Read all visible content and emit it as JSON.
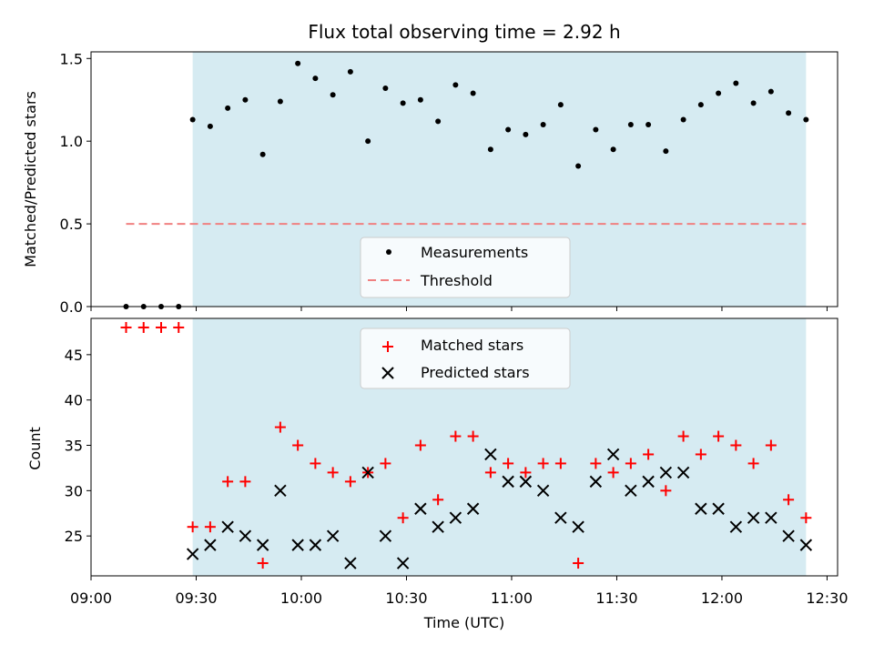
{
  "chart_data": [
    {
      "type": "scatter",
      "title": "Flux total observing time = 2.92 h",
      "ylabel": "Matched/Predicted stars",
      "ylim": [
        0,
        1.54
      ],
      "yticks": [
        0.0,
        0.5,
        1.0,
        1.5
      ],
      "ytick_labels": [
        "0.0",
        "0.5",
        "1.0",
        "1.5"
      ],
      "shaded_span_minutes": [
        569,
        744
      ],
      "threshold": {
        "name": "Threshold",
        "value": 0.5,
        "x_range_minutes": [
          550,
          744
        ],
        "color": "#f08080"
      },
      "legend": {
        "position": "lower-center",
        "entries": [
          "Measurements",
          "Threshold"
        ]
      },
      "series": [
        {
          "name": "Measurements",
          "color": "#000000",
          "x_minutes": [
            550,
            555,
            560,
            565,
            569,
            574,
            579,
            584,
            589,
            594,
            599,
            604,
            609,
            614,
            619,
            624,
            629,
            634,
            639,
            644,
            649,
            654,
            659,
            664,
            669,
            674,
            679,
            684,
            689,
            694,
            699,
            704,
            709,
            714,
            719,
            724,
            729,
            734,
            739,
            744
          ],
          "values": [
            0,
            0,
            0,
            0,
            1.13,
            1.09,
            1.2,
            1.25,
            0.92,
            1.24,
            1.47,
            1.38,
            1.28,
            1.42,
            1.0,
            1.32,
            1.23,
            1.25,
            1.12,
            1.34,
            1.29,
            0.95,
            1.07,
            1.04,
            1.1,
            1.22,
            0.85,
            1.07,
            0.95,
            1.1,
            1.1,
            0.94,
            1.13,
            1.22,
            1.29,
            1.35,
            1.23,
            1.3,
            1.17,
            1.13
          ]
        }
      ]
    },
    {
      "type": "scatter",
      "xlabel": "Time (UTC)",
      "ylabel": "Count",
      "xlim_minutes": [
        540,
        753
      ],
      "ylim": [
        20.6,
        49.0
      ],
      "yticks": [
        25,
        30,
        35,
        40,
        45
      ],
      "ytick_labels": [
        "25",
        "30",
        "35",
        "40",
        "45"
      ],
      "xticks_minutes": [
        540,
        570,
        600,
        630,
        660,
        690,
        720,
        750
      ],
      "xtick_labels": [
        "09:00",
        "09:30",
        "10:00",
        "10:30",
        "11:00",
        "11:30",
        "12:00",
        "12:30"
      ],
      "shaded_span_minutes": [
        569,
        744
      ],
      "legend": {
        "position": "top-center",
        "entries": [
          "Matched stars",
          "Predicted stars"
        ]
      },
      "series": [
        {
          "name": "Matched stars",
          "marker": "+",
          "color": "#ff0000",
          "x_minutes": [
            550,
            555,
            560,
            565,
            569,
            574,
            579,
            584,
            589,
            594,
            599,
            604,
            609,
            614,
            619,
            624,
            629,
            634,
            639,
            644,
            649,
            654,
            659,
            664,
            669,
            674,
            679,
            684,
            689,
            694,
            699,
            704,
            709,
            714,
            719,
            724,
            729,
            734,
            739,
            744
          ],
          "values": [
            48,
            48,
            48,
            48,
            26,
            26,
            31,
            31,
            22,
            37,
            35,
            33,
            32,
            31,
            32,
            33,
            27,
            35,
            29,
            36,
            36,
            32,
            33,
            32,
            33,
            33,
            22,
            33,
            32,
            33,
            34,
            30,
            36,
            34,
            36,
            35,
            33,
            35,
            29,
            27
          ]
        },
        {
          "name": "Predicted stars",
          "marker": "x",
          "color": "#000000",
          "x_minutes": [
            569,
            574,
            579,
            584,
            589,
            594,
            599,
            604,
            609,
            614,
            619,
            624,
            629,
            634,
            639,
            644,
            649,
            654,
            659,
            664,
            669,
            674,
            679,
            684,
            689,
            694,
            699,
            704,
            709,
            714,
            719,
            724,
            729,
            734,
            739,
            744
          ],
          "values": [
            23,
            24,
            26,
            25,
            24,
            30,
            24,
            24,
            25,
            22,
            32,
            25,
            22,
            28,
            26,
            27,
            28,
            34,
            31,
            31,
            30,
            27,
            26,
            31,
            34,
            30,
            31,
            32,
            32,
            28,
            28,
            26,
            27,
            27,
            25,
            24
          ]
        }
      ]
    }
  ]
}
